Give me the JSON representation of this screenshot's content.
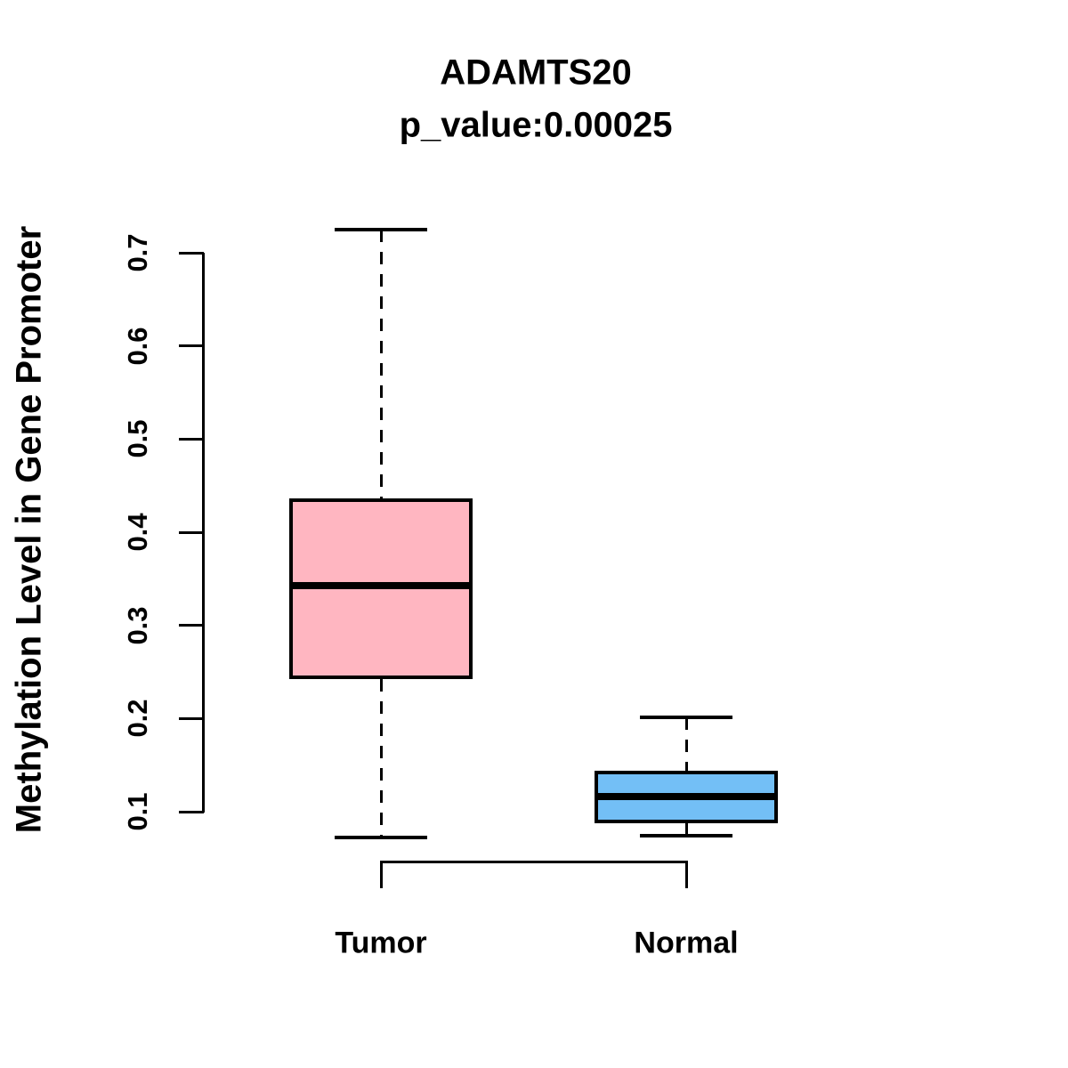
{
  "title": "ADAMTS20",
  "subtitle": "p_value:0.00025",
  "y_axis": {
    "label": "Methylation Level in Gene Promoter",
    "tick_values": [
      0.1,
      0.2,
      0.3,
      0.4,
      0.5,
      0.6,
      0.7
    ],
    "range": [
      0.1,
      0.7
    ]
  },
  "x_axis": {
    "categories": [
      "Tumor",
      "Normal"
    ]
  },
  "colors": {
    "ink": "#000000",
    "background": "#FFFFFF",
    "tumor_fill": "#FFB6C1",
    "normal_fill": "#73BFF6"
  },
  "chart_data": {
    "type": "boxplot",
    "title": "ADAMTS20",
    "subtitle": "p_value:0.00025",
    "p_value_text": "0.00025",
    "xlabel": "",
    "ylabel": "Methylation Level in Gene Promoter",
    "categories": [
      "Tumor",
      "Normal"
    ],
    "ylim": [
      0.1,
      0.7
    ],
    "yticks": [
      0.1,
      0.2,
      0.3,
      0.4,
      0.5,
      0.6,
      0.7
    ],
    "grid": false,
    "legend": "none",
    "series": [
      {
        "name": "Tumor",
        "whisker_low": 0.072,
        "q1": 0.242,
        "median": 0.343,
        "q3": 0.436,
        "whisker_high": 0.725,
        "fill_color": "#FFB6C1",
        "whisker_style": "dashed"
      },
      {
        "name": "Normal",
        "whisker_low": 0.074,
        "q1": 0.088,
        "median": 0.116,
        "q3": 0.144,
        "whisker_high": 0.201,
        "fill_color": "#73BFF6",
        "whisker_style": "dashed"
      }
    ],
    "comparison_bracket": {
      "between": [
        "Tumor",
        "Normal"
      ]
    }
  }
}
